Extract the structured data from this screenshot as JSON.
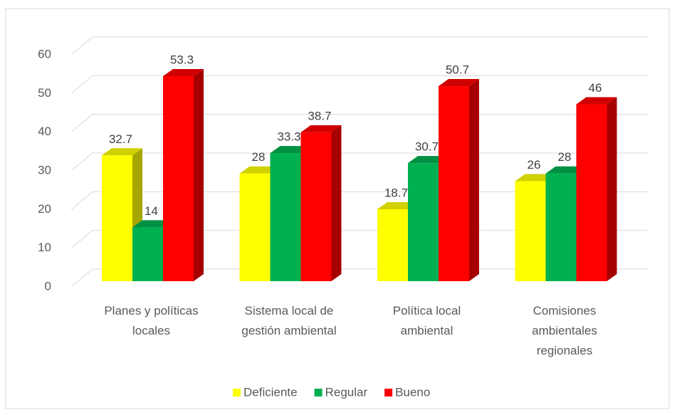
{
  "chart_data": {
    "type": "bar3d",
    "categories": [
      "Planes y políticas locales",
      "Sistema local de gestión ambiental",
      "Política local ambiental",
      "Comisiones ambientales regionales"
    ],
    "series": [
      {
        "name": "Deficiente",
        "color": "#ffff00",
        "values": [
          32.7,
          28,
          18.7,
          26
        ]
      },
      {
        "name": "Regular",
        "color": "#00b050",
        "values": [
          14,
          33.3,
          30.7,
          28
        ]
      },
      {
        "name": "Bueno",
        "color": "#ff0000",
        "values": [
          53.3,
          38.7,
          50.7,
          46
        ]
      }
    ],
    "ylim": [
      0,
      60
    ],
    "yticks": [
      0,
      10,
      20,
      30,
      40,
      50,
      60
    ],
    "grid": true,
    "legend": "bottom"
  }
}
